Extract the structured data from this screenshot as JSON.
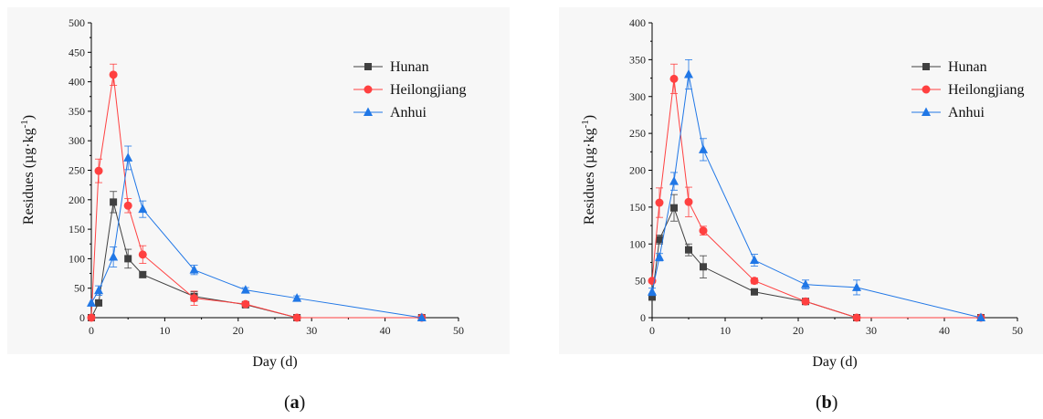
{
  "chart_data": [
    {
      "panel": "(a)",
      "panel_open": "(",
      "panel_letter": "a",
      "panel_close": ")",
      "type": "line",
      "xlabel": "Day (d)",
      "ylabel": "Residues (µg·kg",
      "ylabel_sup": "-1",
      "ylabel_close": ")",
      "xlim": [
        0,
        50
      ],
      "ylim": [
        0,
        500
      ],
      "xticks": [
        0,
        10,
        20,
        30,
        40,
        50
      ],
      "yticks": [
        0,
        50,
        100,
        150,
        200,
        250,
        300,
        350,
        400,
        450,
        500
      ],
      "legend_position": "top-right",
      "series": [
        {
          "name": "Hunan",
          "color": "#404040",
          "marker": "square",
          "x": [
            0,
            1,
            3,
            5,
            7,
            14,
            21,
            28,
            45
          ],
          "y": [
            0,
            25,
            196,
            100,
            73,
            36,
            22,
            0,
            0
          ],
          "err": [
            0,
            5,
            18,
            16,
            5,
            8,
            4,
            0,
            0
          ]
        },
        {
          "name": "Heilongjiang",
          "color": "#ff4040",
          "marker": "circle",
          "x": [
            0,
            1,
            3,
            5,
            7,
            14,
            21,
            28,
            45
          ],
          "y": [
            0,
            249,
            412,
            190,
            107,
            33,
            23,
            0,
            0
          ],
          "err": [
            0,
            20,
            18,
            12,
            15,
            12,
            3,
            0,
            0
          ]
        },
        {
          "name": "Anhui",
          "color": "#2077e6",
          "marker": "triangle",
          "x": [
            0,
            1,
            3,
            5,
            7,
            14,
            21,
            28,
            45
          ],
          "y": [
            25,
            46,
            103,
            271,
            184,
            81,
            47,
            33,
            0
          ],
          "err": [
            0,
            8,
            17,
            20,
            14,
            8,
            4,
            4,
            0
          ]
        }
      ]
    },
    {
      "panel": "(b)",
      "panel_open": "(",
      "panel_letter": "b",
      "panel_close": ")",
      "type": "line",
      "xlabel": "Day (d)",
      "ylabel": "Residues (µg·kg",
      "ylabel_sup": "-1",
      "ylabel_close": ")",
      "xlim": [
        0,
        50
      ],
      "ylim": [
        0,
        400
      ],
      "xticks": [
        0,
        10,
        20,
        30,
        40,
        50
      ],
      "yticks": [
        0,
        50,
        100,
        150,
        200,
        250,
        300,
        350,
        400
      ],
      "legend_position": "top-right",
      "series": [
        {
          "name": "Hunan",
          "color": "#404040",
          "marker": "square",
          "x": [
            0,
            1,
            3,
            5,
            7,
            14,
            21,
            28,
            45
          ],
          "y": [
            28,
            106,
            149,
            92,
            69,
            35,
            22,
            0,
            0
          ],
          "err": [
            4,
            6,
            18,
            8,
            15,
            3,
            3,
            0,
            0
          ]
        },
        {
          "name": "Heilongjiang",
          "color": "#ff4040",
          "marker": "circle",
          "x": [
            0,
            1,
            3,
            5,
            7,
            14,
            21,
            28,
            45
          ],
          "y": [
            50,
            156,
            324,
            157,
            118,
            50,
            22,
            0,
            0
          ],
          "err": [
            0,
            20,
            20,
            20,
            6,
            4,
            3,
            0,
            0
          ]
        },
        {
          "name": "Anhui",
          "color": "#2077e6",
          "marker": "triangle",
          "x": [
            0,
            1,
            3,
            5,
            7,
            14,
            21,
            28,
            45
          ],
          "y": [
            35,
            82,
            185,
            330,
            228,
            78,
            45,
            41,
            0
          ],
          "err": [
            5,
            5,
            12,
            20,
            15,
            8,
            6,
            10,
            0
          ]
        }
      ]
    }
  ]
}
